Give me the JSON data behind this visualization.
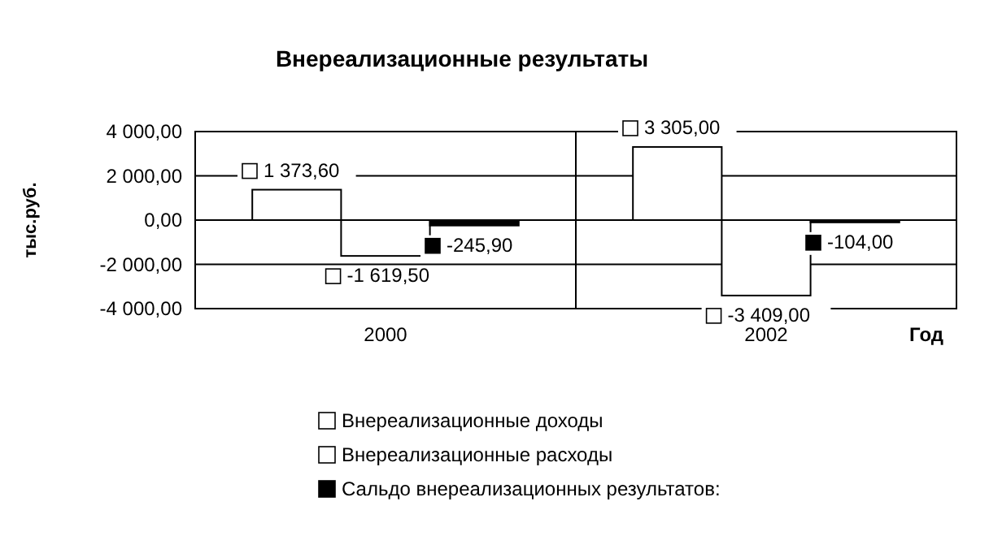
{
  "chart_data": {
    "type": "bar",
    "title": "Внереализационные результаты",
    "xlabel": "Год",
    "ylabel": "тыс.руб.",
    "categories": [
      "2000",
      "2002"
    ],
    "series": [
      {
        "name": "Внереализационные доходы",
        "color": "#ffffff",
        "values": [
          1373.6,
          3305.0
        ],
        "value_labels": [
          "1 373,60",
          "3 305,00"
        ]
      },
      {
        "name": "Внереализационные расходы",
        "color": "#ffffff",
        "values": [
          -1619.5,
          -3409.0
        ],
        "value_labels": [
          "-1 619,50",
          "-3 409,00"
        ]
      },
      {
        "name": "Сальдо внереализационных результатов:",
        "color": "#000000",
        "values": [
          -245.9,
          -104.0
        ],
        "value_labels": [
          "-245,90",
          "-104,00"
        ]
      }
    ],
    "ylim": [
      -4000,
      4000
    ],
    "yticks": [
      {
        "value": -4000,
        "label": "-4 000,00"
      },
      {
        "value": -2000,
        "label": "-2 000,00"
      },
      {
        "value": 0,
        "label": "0,00"
      },
      {
        "value": 2000,
        "label": "2 000,00"
      },
      {
        "value": 4000,
        "label": "4 000,00"
      }
    ],
    "grid": "y",
    "legend": "bottom"
  }
}
